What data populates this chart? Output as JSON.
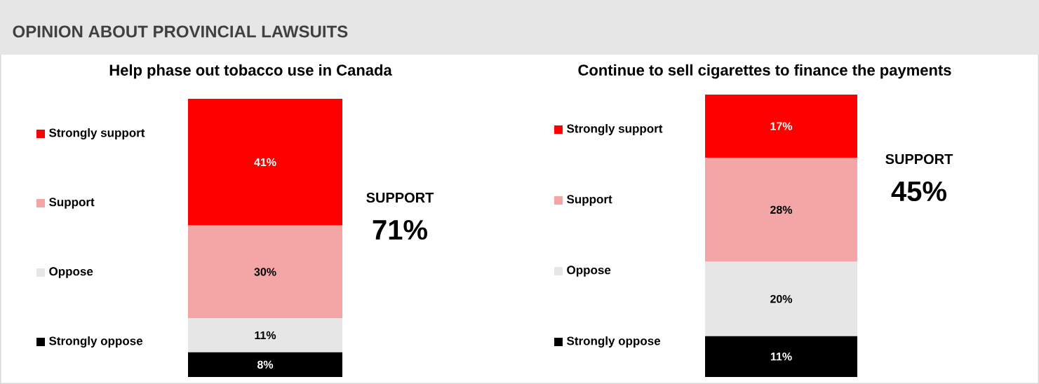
{
  "chart_data": [
    {
      "type": "bar",
      "stacked": true,
      "title": "OPINION ABOUT PROVINCIAL LAWSUITS",
      "subtitle": "Help phase out tobacco use in Canada",
      "categories": [
        null
      ],
      "legend": "left",
      "series": [
        {
          "name": "Strongly oppose",
          "color": "#000000",
          "values": [
            8
          ],
          "value_labels": [
            "8%"
          ]
        },
        {
          "name": "Oppose",
          "color": "#e6e6e6",
          "values": [
            11
          ],
          "value_labels": [
            "11%"
          ]
        },
        {
          "name": "Support",
          "color": "#f4a6a6",
          "values": [
            30
          ],
          "value_labels": [
            "30%"
          ]
        },
        {
          "name": "Strongly support",
          "color": "#ff0000",
          "values": [
            41
          ],
          "value_labels": [
            "41%"
          ]
        }
      ],
      "annotations": [
        "SUPPORT",
        "71%"
      ]
    },
    {
      "type": "bar",
      "stacked": true,
      "subtitle": "Continue to sell cigarettes to finance the payments",
      "categories": [
        null
      ],
      "legend": "left",
      "series": [
        {
          "name": "Strongly oppose",
          "color": "#000000",
          "values": [
            11
          ],
          "value_labels": [
            "11%"
          ]
        },
        {
          "name": "Oppose",
          "color": "#e6e6e6",
          "values": [
            20
          ],
          "value_labels": [
            "20%"
          ]
        },
        {
          "name": "Support",
          "color": "#f4a6a6",
          "values": [
            28
          ],
          "value_labels": [
            "28%"
          ]
        },
        {
          "name": "Strongly support",
          "color": "#ff0000",
          "values": [
            17
          ],
          "value_labels": [
            "17%"
          ]
        }
      ],
      "annotations": [
        "SUPPORT",
        "45%"
      ]
    }
  ]
}
